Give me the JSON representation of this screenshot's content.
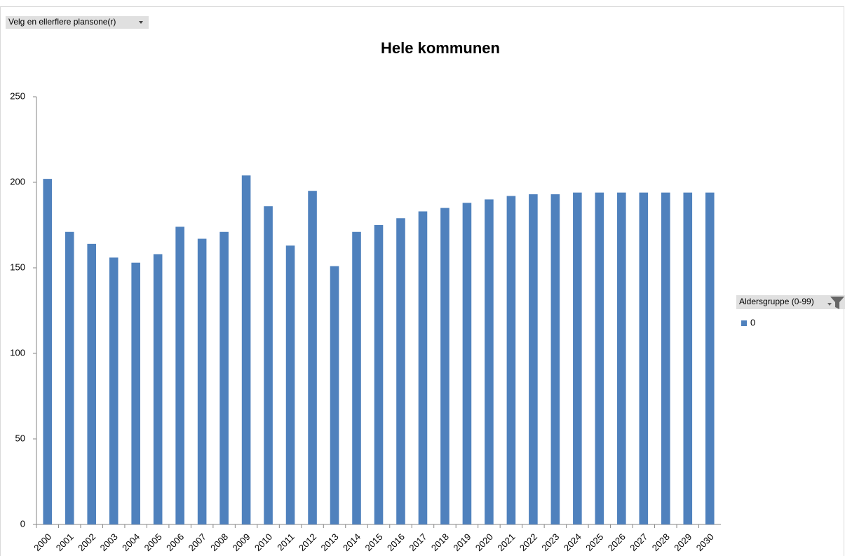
{
  "controls": {
    "zone_filter": "Velg en ellerflere plansone(r)",
    "field_filter": "Aldersgruppe (0-99)"
  },
  "chart_data": {
    "type": "bar",
    "title": "Hele kommunen",
    "categories": [
      "2000",
      "2001",
      "2002",
      "2003",
      "2004",
      "2005",
      "2006",
      "2007",
      "2008",
      "2009",
      "2010",
      "2011",
      "2012",
      "2013",
      "2014",
      "2015",
      "2016",
      "2017",
      "2018",
      "2019",
      "2020",
      "2021",
      "2022",
      "2023",
      "2024",
      "2025",
      "2026",
      "2027",
      "2028",
      "2029",
      "2030"
    ],
    "series": [
      {
        "name": "0",
        "color": "#4f81bd",
        "values": [
          202,
          171,
          164,
          156,
          153,
          158,
          174,
          167,
          171,
          204,
          186,
          163,
          195,
          151,
          171,
          175,
          179,
          183,
          185,
          188,
          190,
          192,
          193,
          193,
          194,
          194,
          194,
          194,
          194,
          194,
          194
        ]
      }
    ],
    "ylim": [
      0,
      250
    ],
    "yticks": [
      0,
      50,
      100,
      150,
      200,
      250
    ],
    "grid": false,
    "legend": "right"
  }
}
